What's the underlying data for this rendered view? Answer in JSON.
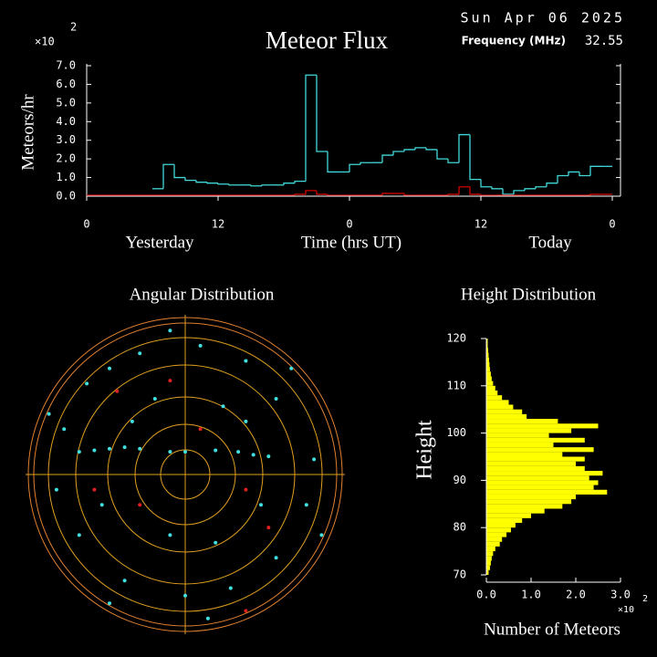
{
  "chart_data": [
    {
      "type": "line",
      "title": "Meteor Flux",
      "date": "Sun Apr 06 2025",
      "frequency_label": "Frequency (MHz)",
      "frequency": 32.55,
      "multiplier": "×10",
      "multiplier_exp": 2,
      "ylabel": "Meteors/hr",
      "xlabel": "Time (hrs UT)",
      "day_labels": [
        "Yesterday",
        "Today"
      ],
      "xlim": [
        0,
        48
      ],
      "xticks": [
        0,
        12,
        {
          "value": 24,
          "label": "0"
        },
        {
          "value": 36,
          "label": "12"
        },
        {
          "value": 48,
          "label": "0"
        }
      ],
      "ylim": [
        0,
        7
      ],
      "yticks": [
        {
          "value": 0,
          "label": "0.0"
        },
        {
          "value": 1,
          "label": "1.0"
        },
        {
          "value": 2,
          "label": "2.0"
        },
        {
          "value": 3,
          "label": "3.0"
        },
        {
          "value": 4,
          "label": "4.0"
        },
        {
          "value": 5,
          "label": "5.0"
        },
        {
          "value": 6,
          "label": "6.0"
        },
        {
          "value": 7,
          "label": "7.0"
        }
      ],
      "series": [
        {
          "color": "#40d8d8",
          "values": [
            null,
            null,
            null,
            null,
            null,
            null,
            0.4,
            1.7,
            1.0,
            0.85,
            0.75,
            0.7,
            0.65,
            0.6,
            0.6,
            0.55,
            0.6,
            0.6,
            0.7,
            0.8,
            6.5,
            2.4,
            1.3,
            1.3,
            1.7,
            1.8,
            1.8,
            2.2,
            2.4,
            2.5,
            2.6,
            2.5,
            2.0,
            1.8,
            3.3,
            0.9,
            0.5,
            0.4,
            0.1,
            0.3,
            0.4,
            0.5,
            0.7,
            1.1,
            1.3,
            1.1,
            1.6,
            1.6
          ]
        },
        {
          "color": "#d00000",
          "values": [
            0.05,
            0.05,
            0.05,
            0.05,
            0.05,
            0.05,
            0.05,
            0.05,
            0.05,
            0.05,
            0.05,
            0.05,
            0.05,
            0.05,
            0.05,
            0.05,
            0.05,
            0.05,
            0.05,
            0.1,
            0.3,
            0.1,
            0.05,
            0.05,
            0.05,
            0.05,
            0.05,
            0.15,
            0.15,
            0.05,
            0.05,
            0.05,
            0.05,
            0.1,
            0.5,
            0.1,
            0.05,
            0.05,
            0.05,
            0.05,
            0.05,
            0.05,
            0.05,
            0.05,
            0.05,
            0.05,
            0.1,
            0.1
          ]
        }
      ]
    },
    {
      "type": "scatter",
      "title": "Angular Distribution",
      "series": [
        {
          "color": "#40e0e0",
          "x": [
            -0.7,
            -0.6,
            -0.5,
            -0.4,
            -0.3,
            -0.1,
            0.0,
            0.2,
            0.35,
            0.45,
            0.55,
            -0.5,
            -0.3,
            0.1,
            0.4,
            0.6,
            -0.8,
            -0.85,
            -0.7,
            -0.4,
            0.0,
            0.3,
            0.6,
            0.8,
            0.85,
            -0.2,
            0.25,
            -0.55,
            0.5,
            -0.1,
            0.2,
            -0.9,
            0.7,
            -0.65,
            -0.1,
            0.15,
            -0.5,
            0.9,
            -0.35,
            0.4
          ],
          "y": [
            0.15,
            0.16,
            0.17,
            0.18,
            0.17,
            0.15,
            0.15,
            0.16,
            0.15,
            0.13,
            0.12,
            0.7,
            0.8,
            0.85,
            0.75,
            0.5,
            0.3,
            -0.1,
            -0.4,
            -0.7,
            -0.8,
            -0.75,
            -0.55,
            -0.2,
            0.1,
            0.5,
            0.45,
            -0.2,
            -0.2,
            -0.4,
            -0.45,
            0.4,
            0.7,
            0.6,
            0.95,
            -0.95,
            -0.85,
            -0.4,
            0.35,
            0.35
          ]
        },
        {
          "color": "#e02020",
          "x": [
            -0.1,
            0.4,
            -0.6,
            0.4,
            -0.3,
            0.1,
            0.55,
            -0.45
          ],
          "y": [
            0.62,
            -0.1,
            -0.1,
            -0.9,
            -0.2,
            0.3,
            -0.35,
            0.55
          ]
        }
      ]
    },
    {
      "type": "histogram",
      "title": "Height Distribution",
      "ylabel": "Height",
      "xlabel": "Number of Meteors",
      "multiplier": "×10",
      "multiplier_exp": 2,
      "color": "#ffff00",
      "bins": [
        70,
        71,
        72,
        73,
        74,
        75,
        76,
        77,
        78,
        79,
        80,
        81,
        82,
        83,
        84,
        85,
        86,
        87,
        88,
        89,
        90,
        91,
        92,
        93,
        94,
        95,
        96,
        97,
        98,
        99,
        100,
        101,
        102,
        103,
        104,
        105,
        106,
        107,
        108,
        109,
        110,
        111,
        112,
        113,
        114,
        115,
        116,
        117,
        118,
        119,
        120
      ],
      "values": [
        0.05,
        0.08,
        0.1,
        0.12,
        0.15,
        0.2,
        0.3,
        0.35,
        0.45,
        0.55,
        0.65,
        0.8,
        1.0,
        1.3,
        1.7,
        1.9,
        2.0,
        2.7,
        2.4,
        2.5,
        2.3,
        2.6,
        2.2,
        2.0,
        2.2,
        1.7,
        2.4,
        1.5,
        2.2,
        1.4,
        1.9,
        2.5,
        1.6,
        0.9,
        0.8,
        0.6,
        0.5,
        0.35,
        0.25,
        0.2,
        0.15,
        0.12,
        0.1,
        0.08,
        0.07,
        0.06,
        0.05,
        0.04,
        0.03,
        0.03
      ],
      "xlim": [
        0,
        3
      ],
      "xticks": [
        {
          "value": 0,
          "label": "0.0"
        },
        {
          "value": 1,
          "label": "1.0"
        },
        {
          "value": 2,
          "label": "2.0"
        },
        {
          "value": 3,
          "label": "3.0"
        }
      ],
      "ylim": [
        70,
        120
      ],
      "yticks": [
        70,
        80,
        90,
        100,
        110,
        120
      ]
    }
  ]
}
